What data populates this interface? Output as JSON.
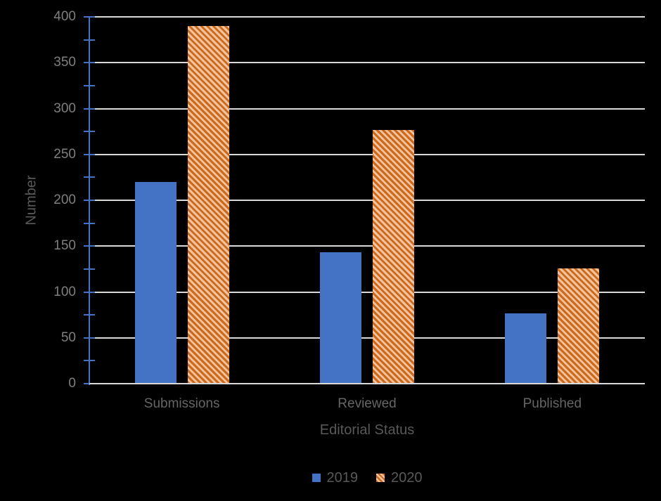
{
  "chart_data": {
    "type": "bar",
    "categories": [
      "Submissions",
      "Reviewed",
      "Published"
    ],
    "series": [
      {
        "name": "2019",
        "values": [
          220,
          143,
          77
        ],
        "style": "solid-blue"
      },
      {
        "name": "2020",
        "values": [
          390,
          277,
          126
        ],
        "style": "orange-diagonal-hatch"
      }
    ],
    "title": "",
    "xlabel": "Editorial Status",
    "ylabel": "Number",
    "ylim": [
      0,
      400
    ],
    "yticks": [
      0,
      50,
      100,
      150,
      200,
      250,
      300,
      350,
      400
    ],
    "minor_tick_step": 25,
    "grid": true,
    "legend_position": "bottom",
    "colors": {
      "series_2019": "#4472C4",
      "series_2020_stripe": "#C96A1E",
      "series_2020_bg": "#F5C29C",
      "gridline": "#D9D9D9",
      "x_axis_line": "#D9D9D9",
      "y_axis_line": "#4472C4",
      "tick_label": "#7F7F7F",
      "category_label": "#666666",
      "axis_title": "#595959",
      "legend_text": "#595959",
      "background": "#000000"
    }
  },
  "legend": {
    "items": [
      {
        "label": "2019",
        "swatch": "solid-blue-square"
      },
      {
        "label": "2020",
        "swatch": "orange-hatch-square"
      }
    ]
  }
}
